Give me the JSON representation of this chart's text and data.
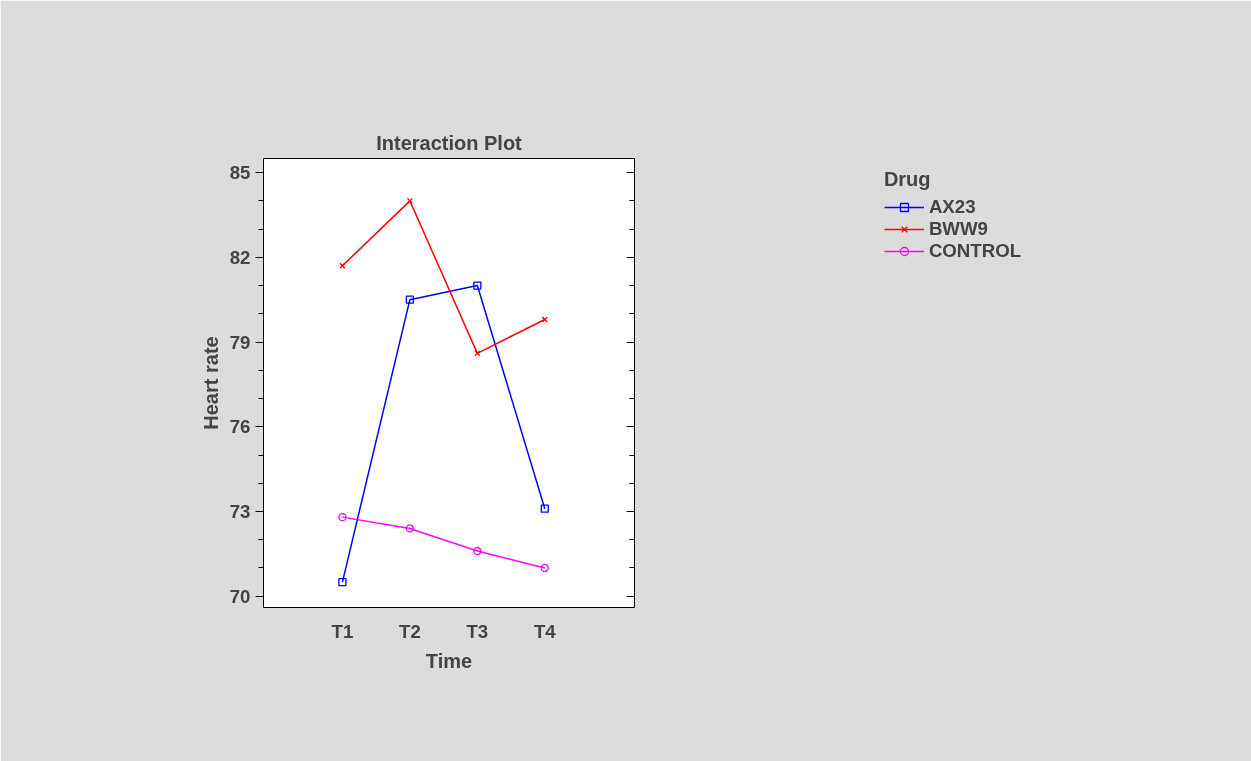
{
  "chart_data": {
    "type": "line",
    "title": "Interaction Plot",
    "xlabel": "Time",
    "ylabel": "Heart rate",
    "legend_title": "Drug",
    "categories": [
      "T1",
      "T2",
      "T3",
      "T4"
    ],
    "series": [
      {
        "name": "AX23",
        "color": "#0000ff",
        "marker": "square",
        "values": [
          70.5,
          80.5,
          81.0,
          73.1
        ]
      },
      {
        "name": "BWW9",
        "color": "#ff0000",
        "marker": "cross",
        "values": [
          81.7,
          84.0,
          78.6,
          79.8
        ]
      },
      {
        "name": "CONTROL",
        "color": "#ff00ff",
        "marker": "circle",
        "values": [
          72.8,
          72.4,
          71.6,
          71.0
        ]
      }
    ],
    "ylim": [
      69.6,
      85.5
    ],
    "yticks": [
      70,
      73,
      76,
      79,
      82,
      85
    ],
    "grid": false,
    "legend": "right",
    "line_style": "solid"
  }
}
